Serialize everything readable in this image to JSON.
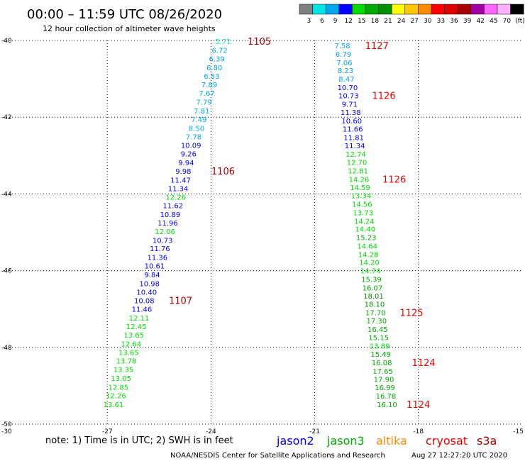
{
  "header": {
    "title": "00:00 – 11:59 UTC 08/26/2020",
    "subtitle": "12 hour collection of altimeter wave heights"
  },
  "colorbar": {
    "bins": [
      {
        "color": "#808080",
        "label": "3"
      },
      {
        "color": "#00e5e5",
        "label": "6"
      },
      {
        "color": "#00a8f0",
        "label": "9"
      },
      {
        "color": "#0000ff",
        "label": "12"
      },
      {
        "color": "#00dd00",
        "label": "15"
      },
      {
        "color": "#00aa00",
        "label": "18"
      },
      {
        "color": "#009000",
        "label": "21"
      },
      {
        "color": "#ffff00",
        "label": "24"
      },
      {
        "color": "#ffc800",
        "label": "27"
      },
      {
        "color": "#ff8c00",
        "label": "30"
      },
      {
        "color": "#ff0000",
        "label": "33"
      },
      {
        "color": "#dd0000",
        "label": "36"
      },
      {
        "color": "#aa0000",
        "label": "39"
      },
      {
        "color": "#a000a0",
        "label": "42"
      },
      {
        "color": "#ff66ff",
        "label": "45"
      },
      {
        "color": "#ffb0ff",
        "label": "70"
      },
      {
        "color": "#000000",
        "label": "(ft)"
      }
    ]
  },
  "chart_data": {
    "type": "scatter",
    "xlim": [
      -30,
      -15
    ],
    "ylim": [
      -50,
      -40
    ],
    "x_ticks": [
      "-30",
      "-27",
      "-24",
      "-21",
      "-18",
      "-15"
    ],
    "y_ticks": [
      "-40",
      "-42",
      "-44",
      "-46",
      "-48",
      "-50"
    ],
    "grid": "dotted",
    "tracks": [
      {
        "points": [
          {
            "lon": -23.65,
            "lat": -40.02,
            "v": "5.71"
          },
          {
            "lon": -23.75,
            "lat": -40.25,
            "v": "6.72"
          },
          {
            "lon": -23.83,
            "lat": -40.47,
            "v": "6.39"
          },
          {
            "lon": -23.9,
            "lat": -40.7,
            "v": "6.80"
          },
          {
            "lon": -23.98,
            "lat": -40.92,
            "v": "6.53"
          },
          {
            "lon": -24.05,
            "lat": -41.15,
            "v": "7.89"
          },
          {
            "lon": -24.12,
            "lat": -41.37,
            "v": "7.67"
          },
          {
            "lon": -24.2,
            "lat": -41.6,
            "v": "7.79"
          },
          {
            "lon": -24.27,
            "lat": -41.83,
            "v": "7.81"
          },
          {
            "lon": -24.35,
            "lat": -42.05,
            "v": "7.49"
          },
          {
            "lon": -24.42,
            "lat": -42.28,
            "v": "8.50"
          },
          {
            "lon": -24.5,
            "lat": -42.5,
            "v": "7.78"
          },
          {
            "lon": -24.58,
            "lat": -42.73,
            "v": "10.09"
          },
          {
            "lon": -24.65,
            "lat": -42.95,
            "v": "9.26"
          },
          {
            "lon": -24.72,
            "lat": -43.18,
            "v": "9.94"
          },
          {
            "lon": -24.8,
            "lat": -43.4,
            "v": "9.98"
          },
          {
            "lon": -24.88,
            "lat": -43.63,
            "v": "11.47"
          },
          {
            "lon": -24.95,
            "lat": -43.85,
            "v": "11.34"
          },
          {
            "lon": -25.02,
            "lat": -44.08,
            "v": "12.26"
          },
          {
            "lon": -25.1,
            "lat": -44.3,
            "v": "11.62"
          },
          {
            "lon": -25.18,
            "lat": -44.53,
            "v": "10.89"
          },
          {
            "lon": -25.25,
            "lat": -44.75,
            "v": "11.96"
          },
          {
            "lon": -25.33,
            "lat": -44.97,
            "v": "12.06"
          },
          {
            "lon": -25.4,
            "lat": -45.2,
            "v": "10.73"
          },
          {
            "lon": -25.48,
            "lat": -45.42,
            "v": "11.76"
          },
          {
            "lon": -25.55,
            "lat": -45.65,
            "v": "11.36"
          },
          {
            "lon": -25.63,
            "lat": -45.87,
            "v": "10.61"
          },
          {
            "lon": -25.7,
            "lat": -46.1,
            "v": "9.84"
          },
          {
            "lon": -25.78,
            "lat": -46.33,
            "v": "10.98"
          },
          {
            "lon": -25.86,
            "lat": -46.55,
            "v": "10.40"
          },
          {
            "lon": -25.93,
            "lat": -46.77,
            "v": "10.08"
          },
          {
            "lon": -26.0,
            "lat": -47.0,
            "v": "11.46"
          },
          {
            "lon": -26.08,
            "lat": -47.23,
            "v": "12.11"
          },
          {
            "lon": -26.16,
            "lat": -47.45,
            "v": "12.45"
          },
          {
            "lon": -26.23,
            "lat": -47.67,
            "v": "13.65"
          },
          {
            "lon": -26.31,
            "lat": -47.9,
            "v": "12.64"
          },
          {
            "lon": -26.38,
            "lat": -48.12,
            "v": "13.65"
          },
          {
            "lon": -26.45,
            "lat": -48.35,
            "v": "13.78"
          },
          {
            "lon": -26.53,
            "lat": -48.57,
            "v": "13.35"
          },
          {
            "lon": -26.6,
            "lat": -48.8,
            "v": "13.05"
          },
          {
            "lon": -26.68,
            "lat": -49.03,
            "v": "12.85"
          },
          {
            "lon": -26.75,
            "lat": -49.25,
            "v": "12.26"
          },
          {
            "lon": -26.82,
            "lat": -49.48,
            "v": "13.61"
          }
        ],
        "time_labels": [
          {
            "lon": -22.6,
            "lat": -40.02,
            "text": "1105"
          },
          {
            "lon": -23.65,
            "lat": -43.4,
            "text": "1106"
          },
          {
            "lon": -24.88,
            "lat": -46.77,
            "text": "1107"
          }
        ]
      },
      {
        "points": [
          {
            "lon": -20.2,
            "lat": -40.13,
            "v": "7.58"
          },
          {
            "lon": -20.17,
            "lat": -40.35,
            "v": "6.79"
          },
          {
            "lon": -20.14,
            "lat": -40.57,
            "v": "7.06"
          },
          {
            "lon": -20.11,
            "lat": -40.78,
            "v": "8.23"
          },
          {
            "lon": -20.08,
            "lat": -41.0,
            "v": "8.47"
          },
          {
            "lon": -20.05,
            "lat": -41.22,
            "v": "10.70"
          },
          {
            "lon": -20.02,
            "lat": -41.43,
            "v": "10.73"
          },
          {
            "lon": -19.99,
            "lat": -41.65,
            "v": "9.71"
          },
          {
            "lon": -19.96,
            "lat": -41.87,
            "v": "11.38"
          },
          {
            "lon": -19.93,
            "lat": -42.09,
            "v": "10.60"
          },
          {
            "lon": -19.9,
            "lat": -42.3,
            "v": "11.66"
          },
          {
            "lon": -19.87,
            "lat": -42.52,
            "v": "11.81"
          },
          {
            "lon": -19.84,
            "lat": -42.74,
            "v": "11.34"
          },
          {
            "lon": -19.81,
            "lat": -42.96,
            "v": "12.74"
          },
          {
            "lon": -19.78,
            "lat": -43.17,
            "v": "12.70"
          },
          {
            "lon": -19.75,
            "lat": -43.39,
            "v": "12.81"
          },
          {
            "lon": -19.72,
            "lat": -43.61,
            "v": "14.26"
          },
          {
            "lon": -19.69,
            "lat": -43.83,
            "v": "14.59"
          },
          {
            "lon": -19.66,
            "lat": -44.04,
            "v": "13.34"
          },
          {
            "lon": -19.63,
            "lat": -44.26,
            "v": "14.56"
          },
          {
            "lon": -19.6,
            "lat": -44.48,
            "v": "13.73"
          },
          {
            "lon": -19.57,
            "lat": -44.7,
            "v": "14.24"
          },
          {
            "lon": -19.54,
            "lat": -44.91,
            "v": "14.40"
          },
          {
            "lon": -19.51,
            "lat": -45.13,
            "v": "15.23"
          },
          {
            "lon": -19.48,
            "lat": -45.35,
            "v": "14.64"
          },
          {
            "lon": -19.45,
            "lat": -45.57,
            "v": "14.28"
          },
          {
            "lon": -19.42,
            "lat": -45.78,
            "v": "14.20"
          },
          {
            "lon": -19.39,
            "lat": -46.0,
            "v": "14.74"
          },
          {
            "lon": -19.36,
            "lat": -46.22,
            "v": "15.39"
          },
          {
            "lon": -19.33,
            "lat": -46.44,
            "v": "16.07"
          },
          {
            "lon": -19.3,
            "lat": -46.65,
            "v": "18.01"
          },
          {
            "lon": -19.27,
            "lat": -46.87,
            "v": "18.10"
          },
          {
            "lon": -19.24,
            "lat": -47.09,
            "v": "17.70"
          },
          {
            "lon": -19.21,
            "lat": -47.3,
            "v": "17.30"
          },
          {
            "lon": -19.18,
            "lat": -47.52,
            "v": "16.45"
          },
          {
            "lon": -19.15,
            "lat": -47.74,
            "v": "15.15"
          },
          {
            "lon": -19.12,
            "lat": -47.96,
            "v": "13.89"
          },
          {
            "lon": -19.09,
            "lat": -48.17,
            "v": "15.49"
          },
          {
            "lon": -19.06,
            "lat": -48.39,
            "v": "16.08"
          },
          {
            "lon": -19.03,
            "lat": -48.61,
            "v": "17.65"
          },
          {
            "lon": -19.0,
            "lat": -48.83,
            "v": "17.90"
          },
          {
            "lon": -18.97,
            "lat": -49.04,
            "v": "16.99"
          },
          {
            "lon": -18.94,
            "lat": -49.26,
            "v": "16.78"
          },
          {
            "lon": -18.91,
            "lat": -49.48,
            "v": "16.10"
          }
        ],
        "time_labels": [
          {
            "lon": -19.2,
            "lat": -40.13,
            "text": "1127"
          },
          {
            "lon": -19.0,
            "lat": -41.43,
            "text": "1126"
          },
          {
            "lon": -18.7,
            "lat": -43.61,
            "text": "1126"
          },
          {
            "lon": -18.2,
            "lat": -47.09,
            "text": "1125"
          },
          {
            "lon": -17.85,
            "lat": -48.39,
            "text": "1124"
          },
          {
            "lon": -18.0,
            "lat": -49.48,
            "text": "1124"
          }
        ]
      }
    ]
  },
  "footer": {
    "note": "note: 1) Time is in UTC; 2) SWH is in feet",
    "legend": [
      {
        "name": "jason2",
        "color": "#0000ee"
      },
      {
        "name": "jason3",
        "color": "#00aa00"
      },
      {
        "name": "altika",
        "color": "#ff8c00"
      },
      {
        "name": "cryosat",
        "color": "#ee0000"
      },
      {
        "name": "s3a",
        "color": "#aa0000"
      }
    ],
    "credit": "NOAA/NESDIS Center for Satellite Applications and Research",
    "timestamp": "Aug 27 12:27:20 UTC 2020"
  }
}
